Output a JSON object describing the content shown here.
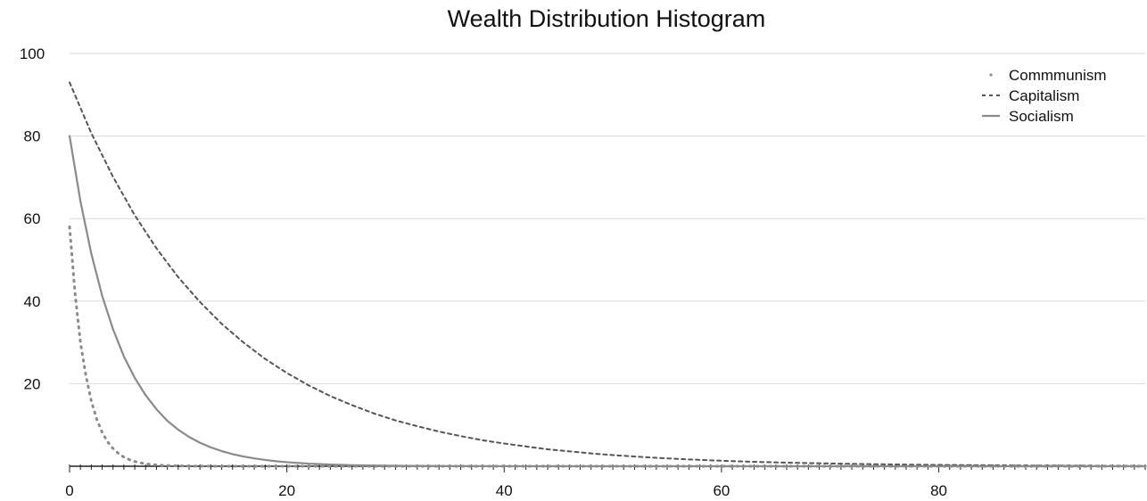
{
  "chart_data": {
    "type": "line",
    "title": "Wealth Distribution Histogram",
    "xlabel": "",
    "ylabel": "",
    "xlim": [
      0,
      99
    ],
    "ylim": [
      0,
      100
    ],
    "x_ticks": [
      "0",
      "20",
      "40",
      "60",
      "80"
    ],
    "y_ticks": [
      "20",
      "40",
      "60",
      "80",
      "100"
    ],
    "grid": "horizontal",
    "legend_position": "top-right",
    "series": [
      {
        "name": "Commmunism",
        "style": "dotted",
        "color": "#8a8a8a",
        "x": [
          0,
          0.5,
          1,
          1.5,
          2,
          2.5,
          3,
          3.5,
          4,
          4.5,
          5,
          5.5,
          6,
          6.5,
          7,
          7.5,
          8,
          9,
          10,
          12,
          15,
          20,
          30,
          40,
          50,
          60,
          70,
          80,
          90,
          99
        ],
        "y": [
          58,
          42,
          30,
          22,
          15.8,
          11.4,
          8.2,
          5.9,
          4.3,
          3.1,
          2.2,
          1.6,
          1.15,
          0.83,
          0.6,
          0.43,
          0.31,
          0.16,
          0.08,
          0.02,
          0,
          0,
          0,
          0,
          0,
          0,
          0,
          0,
          0,
          0
        ]
      },
      {
        "name": "Capitalism",
        "style": "dashed",
        "color": "#555555",
        "x": [
          0,
          2,
          4,
          6,
          8,
          10,
          12,
          14,
          16,
          18,
          20,
          22,
          24,
          26,
          28,
          30,
          32,
          34,
          36,
          38,
          40,
          42,
          44,
          46,
          48,
          50,
          52,
          54,
          56,
          58,
          60,
          62,
          64,
          66,
          68,
          70,
          72,
          74,
          76,
          78,
          80,
          82,
          84,
          86,
          88,
          90,
          92,
          94,
          96,
          99
        ],
        "y": [
          93,
          80.7,
          70.1,
          60.8,
          52.8,
          45.8,
          39.8,
          34.5,
          30,
          26,
          22.6,
          19.6,
          17,
          14.8,
          12.8,
          11.1,
          9.7,
          8.4,
          7.3,
          6.3,
          5.5,
          4.8,
          4.1,
          3.6,
          3.1,
          2.7,
          2.35,
          2.04,
          1.77,
          1.54,
          1.33,
          1.16,
          1.0,
          0.87,
          0.76,
          0.66,
          0.57,
          0.5,
          0.43,
          0.37,
          0.32,
          0.28,
          0.24,
          0.21,
          0.18,
          0.16,
          0.14,
          0.12,
          0.1,
          0.08
        ]
      },
      {
        "name": "Socialism",
        "style": "solid",
        "color": "#8a8a8a",
        "x": [
          0,
          1,
          2,
          3,
          4,
          5,
          6,
          7,
          8,
          9,
          10,
          11,
          12,
          13,
          14,
          15,
          16,
          17,
          18,
          19,
          20,
          22,
          24,
          26,
          28,
          30,
          35,
          40,
          50,
          60,
          70,
          80,
          90,
          99
        ],
        "y": [
          80,
          64.2,
          51.5,
          41.3,
          33.2,
          26.6,
          21.4,
          17.2,
          13.8,
          11,
          8.85,
          7.1,
          5.7,
          4.57,
          3.67,
          2.94,
          2.36,
          1.9,
          1.52,
          1.22,
          0.98,
          0.63,
          0.41,
          0.26,
          0.17,
          0.11,
          0.04,
          0.01,
          0,
          0,
          0,
          0,
          0,
          0
        ]
      }
    ]
  }
}
